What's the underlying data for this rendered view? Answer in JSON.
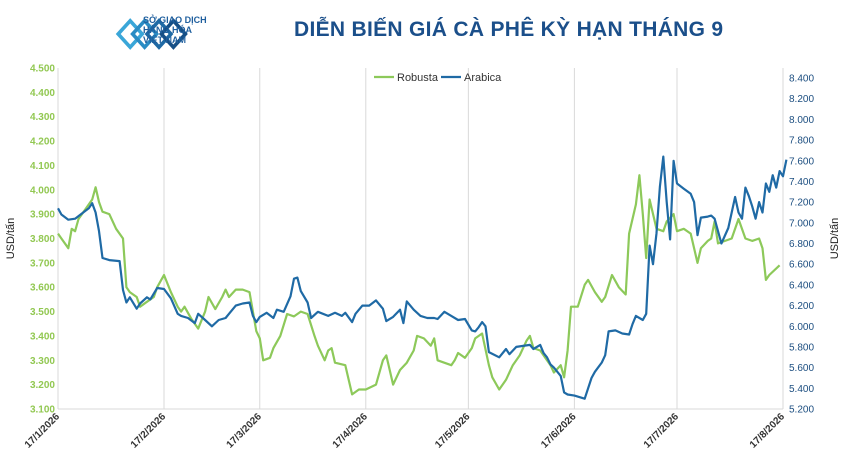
{
  "header": {
    "org_line1": "SỞ GIAO DỊCH",
    "org_line2": "HÀNG HÓA",
    "org_line3": "VIỆT NAM",
    "title": "DIỄN BIẾN GIÁ CÀ PHÊ KỲ HẠN THÁNG 9"
  },
  "colors": {
    "robusta": "#8dc95a",
    "arabica": "#1f6aa5",
    "title": "#1b4f8a",
    "left_axis": "#92c852",
    "right_axis": "#1c4e80",
    "grid": "#d9d9d9"
  },
  "chart_data": {
    "type": "line",
    "ylabel": "USD/tấn",
    "y2label": "USD/tấn",
    "ylim": [
      3100,
      4500
    ],
    "y2lim": [
      5200,
      8500
    ],
    "legend_position": "top-center",
    "grid": "vertical",
    "y_ticks": [
      "4.500",
      "4.400",
      "4.300",
      "4.200",
      "4.100",
      "4.000",
      "3.900",
      "3.800",
      "3.700",
      "3.600",
      "3.500",
      "3.400",
      "3.300",
      "3.200",
      "3.100"
    ],
    "y2_ticks": [
      "8.400",
      "8.200",
      "8.000",
      "7.800",
      "7.600",
      "7.400",
      "7.200",
      "7.000",
      "6.800",
      "6.600",
      "6.400",
      "6.200",
      "6.000",
      "5.800",
      "5.600",
      "5.400",
      "5.200"
    ],
    "x_ticks": [
      "17/1/2026",
      "17/2/2026",
      "17/3/2026",
      "17/4/2026",
      "17/5/2026",
      "17/6/2026",
      "17/7/2026",
      "17/8/2026"
    ],
    "series": [
      {
        "name": "Robusta",
        "axis": "left",
        "points": [
          [
            "17/1/2026",
            3820
          ],
          [
            "18/1/2026",
            3800
          ],
          [
            "20/1/2026",
            3760
          ],
          [
            "21/1/2026",
            3840
          ],
          [
            "22/1/2026",
            3830
          ],
          [
            "23/1/2026",
            3880
          ],
          [
            "25/1/2026",
            3920
          ],
          [
            "27/1/2026",
            3960
          ],
          [
            "28/1/2026",
            4010
          ],
          [
            "29/1/2026",
            3950
          ],
          [
            "30/1/2026",
            3910
          ],
          [
            "1/2/2026",
            3900
          ],
          [
            "3/2/2026",
            3840
          ],
          [
            "5/2/2026",
            3800
          ],
          [
            "6/2/2026",
            3600
          ],
          [
            "7/2/2026",
            3580
          ],
          [
            "9/2/2026",
            3560
          ],
          [
            "10/2/2026",
            3520
          ],
          [
            "12/2/2026",
            3540
          ],
          [
            "14/2/2026",
            3560
          ],
          [
            "15/2/2026",
            3600
          ],
          [
            "17/2/2026",
            3650
          ],
          [
            "19/2/2026",
            3580
          ],
          [
            "21/2/2026",
            3520
          ],
          [
            "22/2/2026",
            3500
          ],
          [
            "23/2/2026",
            3520
          ],
          [
            "25/2/2026",
            3470
          ],
          [
            "27/2/2026",
            3430
          ],
          [
            "1/3/2026",
            3500
          ],
          [
            "2/3/2026",
            3560
          ],
          [
            "4/3/2026",
            3510
          ],
          [
            "6/3/2026",
            3560
          ],
          [
            "7/3/2026",
            3590
          ],
          [
            "8/3/2026",
            3560
          ],
          [
            "10/3/2026",
            3590
          ],
          [
            "12/3/2026",
            3590
          ],
          [
            "14/3/2026",
            3580
          ],
          [
            "15/3/2026",
            3500
          ],
          [
            "16/3/2026",
            3420
          ],
          [
            "17/3/2026",
            3390
          ],
          [
            "18/3/2026",
            3300
          ],
          [
            "20/3/2026",
            3310
          ],
          [
            "21/3/2026",
            3350
          ],
          [
            "23/3/2026",
            3400
          ],
          [
            "25/3/2026",
            3490
          ],
          [
            "27/3/2026",
            3480
          ],
          [
            "29/3/2026",
            3500
          ],
          [
            "31/3/2026",
            3490
          ],
          [
            "2/4/2026",
            3400
          ],
          [
            "3/4/2026",
            3360
          ],
          [
            "5/4/2026",
            3300
          ],
          [
            "6/4/2026",
            3340
          ],
          [
            "7/4/2026",
            3350
          ],
          [
            "8/4/2026",
            3290
          ],
          [
            "11/4/2026",
            3280
          ],
          [
            "13/4/2026",
            3160
          ],
          [
            "15/4/2026",
            3180
          ],
          [
            "17/4/2026",
            3180
          ],
          [
            "20/4/2026",
            3200
          ],
          [
            "22/4/2026",
            3300
          ],
          [
            "23/4/2026",
            3320
          ],
          [
            "25/4/2026",
            3200
          ],
          [
            "27/4/2026",
            3260
          ],
          [
            "29/4/2026",
            3290
          ],
          [
            "1/5/2026",
            3340
          ],
          [
            "2/5/2026",
            3400
          ],
          [
            "4/5/2026",
            3390
          ],
          [
            "6/5/2026",
            3360
          ],
          [
            "7/5/2026",
            3390
          ],
          [
            "8/5/2026",
            3300
          ],
          [
            "12/5/2026",
            3280
          ],
          [
            "13/5/2026",
            3300
          ],
          [
            "14/5/2026",
            3330
          ],
          [
            "16/5/2026",
            3310
          ],
          [
            "18/5/2026",
            3350
          ],
          [
            "19/5/2026",
            3390
          ],
          [
            "21/5/2026",
            3410
          ],
          [
            "23/5/2026",
            3280
          ],
          [
            "24/5/2026",
            3230
          ],
          [
            "26/5/2026",
            3180
          ],
          [
            "28/5/2026",
            3220
          ],
          [
            "30/5/2026",
            3280
          ],
          [
            "1/6/2026",
            3320
          ],
          [
            "3/6/2026",
            3380
          ],
          [
            "4/6/2026",
            3400
          ],
          [
            "5/6/2026",
            3350
          ],
          [
            "7/6/2026",
            3340
          ],
          [
            "9/6/2026",
            3300
          ],
          [
            "10/6/2026",
            3280
          ],
          [
            "11/6/2026",
            3250
          ],
          [
            "13/6/2026",
            3280
          ],
          [
            "14/6/2026",
            3230
          ],
          [
            "15/6/2026",
            3340
          ],
          [
            "16/6/2026",
            3520
          ],
          [
            "18/6/2026",
            3520
          ],
          [
            "20/6/2026",
            3610
          ],
          [
            "21/6/2026",
            3630
          ],
          [
            "23/6/2026",
            3580
          ],
          [
            "25/6/2026",
            3540
          ],
          [
            "26/6/2026",
            3560
          ],
          [
            "28/6/2026",
            3650
          ],
          [
            "30/6/2026",
            3600
          ],
          [
            "2/7/2026",
            3570
          ],
          [
            "3/7/2026",
            3820
          ],
          [
            "5/7/2026",
            3940
          ],
          [
            "6/7/2026",
            4060
          ],
          [
            "7/7/2026",
            3900
          ],
          [
            "8/7/2026",
            3720
          ],
          [
            "9/7/2026",
            3960
          ],
          [
            "11/7/2026",
            3840
          ],
          [
            "13/7/2026",
            3830
          ],
          [
            "14/7/2026",
            3870
          ],
          [
            "16/7/2026",
            3900
          ],
          [
            "17/7/2026",
            3830
          ],
          [
            "19/7/2026",
            3840
          ],
          [
            "21/7/2026",
            3820
          ],
          [
            "22/7/2026",
            3760
          ],
          [
            "23/7/2026",
            3700
          ],
          [
            "24/7/2026",
            3760
          ],
          [
            "26/7/2026",
            3790
          ],
          [
            "27/7/2026",
            3800
          ],
          [
            "28/7/2026",
            3870
          ],
          [
            "29/7/2026",
            3780
          ],
          [
            "2/8/2026",
            3800
          ],
          [
            "4/8/2026",
            3880
          ],
          [
            "6/8/2026",
            3800
          ],
          [
            "8/8/2026",
            3790
          ],
          [
            "10/8/2026",
            3800
          ],
          [
            "11/8/2026",
            3760
          ],
          [
            "12/8/2026",
            3630
          ],
          [
            "13/8/2026",
            3650
          ],
          [
            "16/8/2026",
            3690
          ]
        ]
      },
      {
        "name": "Arabica",
        "axis": "right",
        "points": [
          [
            "17/1/2026",
            7140
          ],
          [
            "18/1/2026",
            7080
          ],
          [
            "20/1/2026",
            7030
          ],
          [
            "22/1/2026",
            7040
          ],
          [
            "24/1/2026",
            7090
          ],
          [
            "26/1/2026",
            7140
          ],
          [
            "27/1/2026",
            7190
          ],
          [
            "28/1/2026",
            7100
          ],
          [
            "29/1/2026",
            6920
          ],
          [
            "30/1/2026",
            6660
          ],
          [
            "1/2/2026",
            6640
          ],
          [
            "4/2/2026",
            6630
          ],
          [
            "5/2/2026",
            6350
          ],
          [
            "6/2/2026",
            6230
          ],
          [
            "7/2/2026",
            6280
          ],
          [
            "9/2/2026",
            6170
          ],
          [
            "10/2/2026",
            6220
          ],
          [
            "12/2/2026",
            6280
          ],
          [
            "13/2/2026",
            6260
          ],
          [
            "15/2/2026",
            6370
          ],
          [
            "17/2/2026",
            6360
          ],
          [
            "19/2/2026",
            6270
          ],
          [
            "21/2/2026",
            6120
          ],
          [
            "22/2/2026",
            6100
          ],
          [
            "24/2/2026",
            6080
          ],
          [
            "26/2/2026",
            6030
          ],
          [
            "27/2/2026",
            6120
          ],
          [
            "1/3/2026",
            6060
          ],
          [
            "3/3/2026",
            6000
          ],
          [
            "5/3/2026",
            6060
          ],
          [
            "7/3/2026",
            6080
          ],
          [
            "8/3/2026",
            6120
          ],
          [
            "10/3/2026",
            6200
          ],
          [
            "12/3/2026",
            6220
          ],
          [
            "14/3/2026",
            6230
          ],
          [
            "15/3/2026",
            6100
          ],
          [
            "16/3/2026",
            6040
          ],
          [
            "17/3/2026",
            6090
          ],
          [
            "19/3/2026",
            6130
          ],
          [
            "21/3/2026",
            6080
          ],
          [
            "22/3/2026",
            6160
          ],
          [
            "24/3/2026",
            6140
          ],
          [
            "26/3/2026",
            6290
          ],
          [
            "27/3/2026",
            6460
          ],
          [
            "28/3/2026",
            6470
          ],
          [
            "29/3/2026",
            6340
          ],
          [
            "31/3/2026",
            6230
          ],
          [
            "1/4/2026",
            6080
          ],
          [
            "3/4/2026",
            6140
          ],
          [
            "6/4/2026",
            6100
          ],
          [
            "8/4/2026",
            6130
          ],
          [
            "10/4/2026",
            6100
          ],
          [
            "11/4/2026",
            6130
          ],
          [
            "13/4/2026",
            6040
          ],
          [
            "14/4/2026",
            6120
          ],
          [
            "16/4/2026",
            6200
          ],
          [
            "18/4/2026",
            6200
          ],
          [
            "20/4/2026",
            6250
          ],
          [
            "22/4/2026",
            6170
          ],
          [
            "23/4/2026",
            6050
          ],
          [
            "25/4/2026",
            6090
          ],
          [
            "27/4/2026",
            6160
          ],
          [
            "28/4/2026",
            6030
          ],
          [
            "29/4/2026",
            6240
          ],
          [
            "1/5/2026",
            6160
          ],
          [
            "3/5/2026",
            6100
          ],
          [
            "5/5/2026",
            6080
          ],
          [
            "7/5/2026",
            6080
          ],
          [
            "8/5/2026",
            6070
          ],
          [
            "10/5/2026",
            6140
          ],
          [
            "12/5/2026",
            6100
          ],
          [
            "14/5/2026",
            6060
          ],
          [
            "16/5/2026",
            6070
          ],
          [
            "18/5/2026",
            5960
          ],
          [
            "19/5/2026",
            5950
          ],
          [
            "20/5/2026",
            5990
          ],
          [
            "21/5/2026",
            6040
          ],
          [
            "22/5/2026",
            6000
          ],
          [
            "23/5/2026",
            5750
          ],
          [
            "26/5/2026",
            5700
          ],
          [
            "28/5/2026",
            5780
          ],
          [
            "29/5/2026",
            5730
          ],
          [
            "31/5/2026",
            5800
          ],
          [
            "2/6/2026",
            5810
          ],
          [
            "4/6/2026",
            5820
          ],
          [
            "5/6/2026",
            5780
          ],
          [
            "7/6/2026",
            5820
          ],
          [
            "8/6/2026",
            5740
          ],
          [
            "9/6/2026",
            5700
          ],
          [
            "10/6/2026",
            5630
          ],
          [
            "11/6/2026",
            5600
          ],
          [
            "13/6/2026",
            5520
          ],
          [
            "14/6/2026",
            5360
          ],
          [
            "15/6/2026",
            5340
          ],
          [
            "17/6/2026",
            5330
          ],
          [
            "20/6/2026",
            5300
          ],
          [
            "22/6/2026",
            5500
          ],
          [
            "23/6/2026",
            5560
          ],
          [
            "25/6/2026",
            5650
          ],
          [
            "26/6/2026",
            5720
          ],
          [
            "27/6/2026",
            5950
          ],
          [
            "29/6/2026",
            5960
          ],
          [
            "1/7/2026",
            5930
          ],
          [
            "3/7/2026",
            5920
          ],
          [
            "4/7/2026",
            6020
          ],
          [
            "5/7/2026",
            6100
          ],
          [
            "7/7/2026",
            6060
          ],
          [
            "8/7/2026",
            6120
          ],
          [
            "9/7/2026",
            6780
          ],
          [
            "10/7/2026",
            6600
          ],
          [
            "11/7/2026",
            6900
          ],
          [
            "12/7/2026",
            7350
          ],
          [
            "13/7/2026",
            7640
          ],
          [
            "14/7/2026",
            7200
          ],
          [
            "15/7/2026",
            6840
          ],
          [
            "16/7/2026",
            7600
          ],
          [
            "17/7/2026",
            7380
          ],
          [
            "19/7/2026",
            7330
          ],
          [
            "21/7/2026",
            7280
          ],
          [
            "22/7/2026",
            7200
          ],
          [
            "23/7/2026",
            6880
          ],
          [
            "24/7/2026",
            7050
          ],
          [
            "26/7/2026",
            7060
          ],
          [
            "27/7/2026",
            7070
          ],
          [
            "28/7/2026",
            7040
          ],
          [
            "30/7/2026",
            6800
          ],
          [
            "1/8/2026",
            6950
          ],
          [
            "2/8/2026",
            7100
          ],
          [
            "3/8/2026",
            7250
          ],
          [
            "4/8/2026",
            7100
          ],
          [
            "5/8/2026",
            7040
          ],
          [
            "6/8/2026",
            7340
          ],
          [
            "7/8/2026",
            7260
          ],
          [
            "8/8/2026",
            7160
          ],
          [
            "9/8/2026",
            7040
          ],
          [
            "10/8/2026",
            7200
          ],
          [
            "11/8/2026",
            7100
          ],
          [
            "12/8/2026",
            7380
          ],
          [
            "13/8/2026",
            7300
          ],
          [
            "14/8/2026",
            7460
          ],
          [
            "15/8/2026",
            7340
          ],
          [
            "16/8/2026",
            7500
          ],
          [
            "17/8/2026",
            7450
          ],
          [
            "18/8/2026",
            7610
          ]
        ]
      }
    ]
  }
}
